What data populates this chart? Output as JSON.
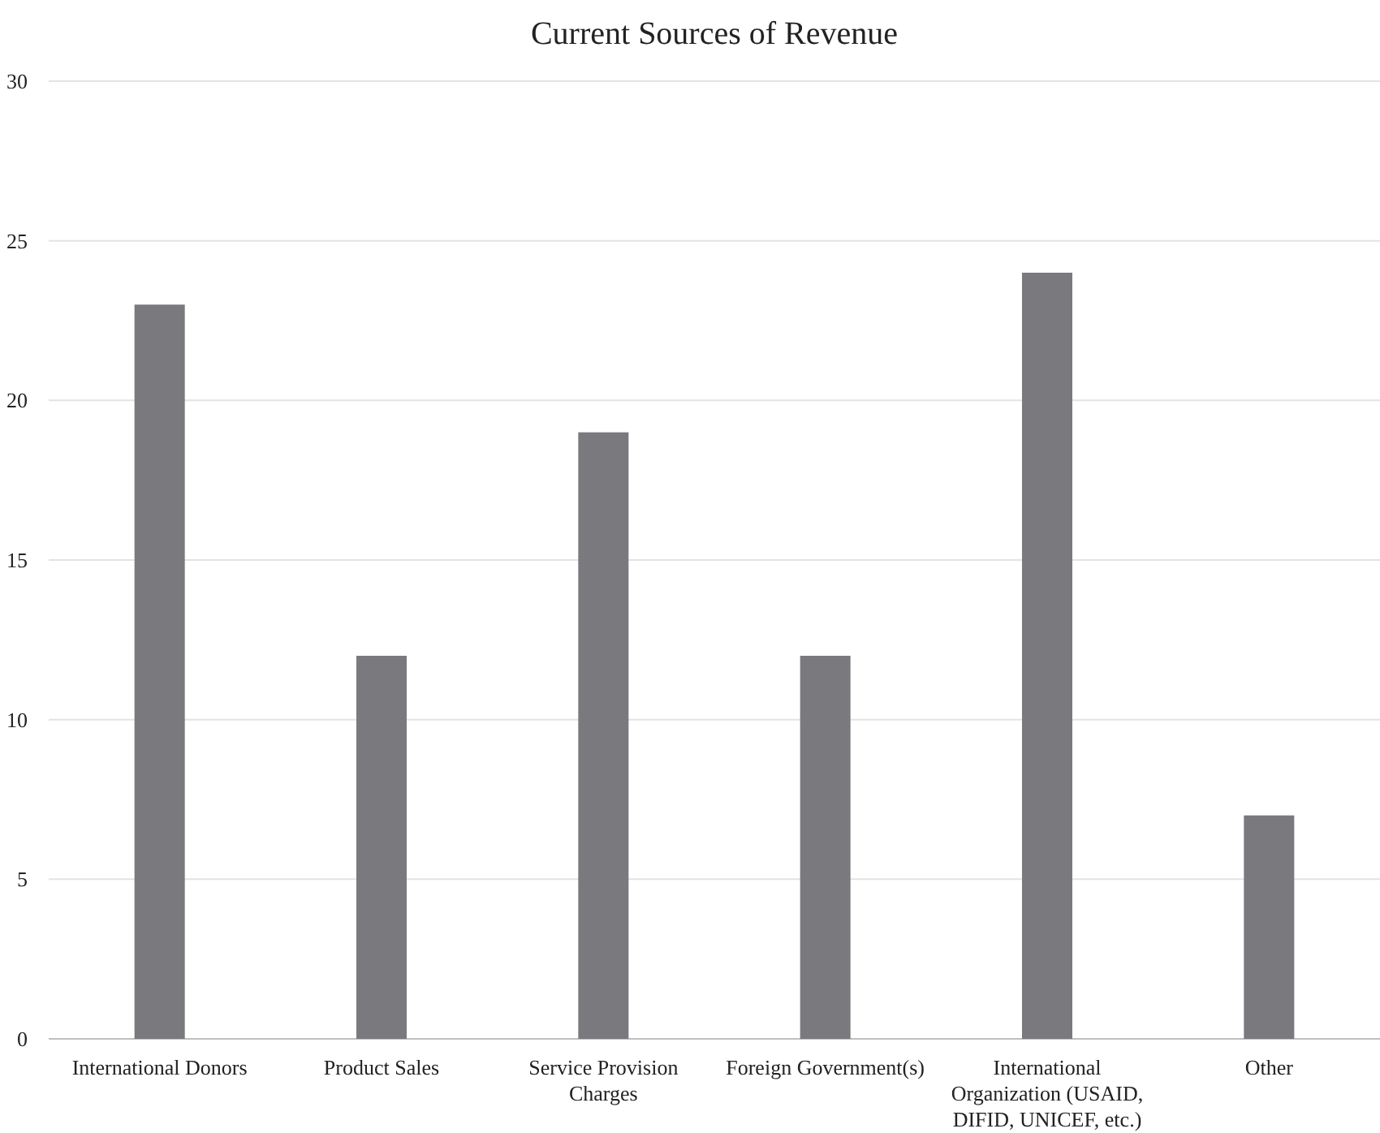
{
  "chart_data": {
    "type": "bar",
    "title": "Current Sources of Revenue",
    "categories": [
      "International Donors",
      "Product Sales",
      "Service Provision Charges",
      "Foreign Government(s)",
      "International Organization (USAID, DIFID, UNICEF, etc.)",
      "Other"
    ],
    "values": [
      23,
      12,
      19,
      12,
      24,
      7
    ],
    "color": "#7a797e",
    "ylim": [
      0,
      30
    ],
    "yticks": [
      0,
      5,
      10,
      15,
      20,
      25,
      30
    ],
    "grid": "y"
  }
}
